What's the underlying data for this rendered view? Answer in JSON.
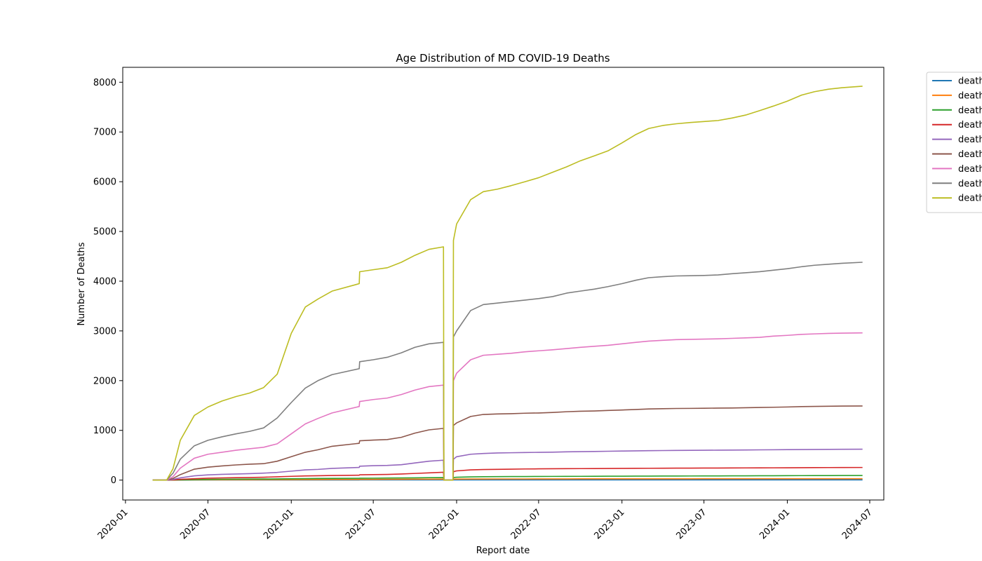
{
  "chart_data": {
    "type": "line",
    "title": "Age Distribution of MD COVID-19 Deaths",
    "xlabel": "Report date",
    "ylabel": "Number of Deaths",
    "x_ticks": [
      "2020-01",
      "2020-07",
      "2021-01",
      "2021-07",
      "2022-01",
      "2022-07",
      "2023-01",
      "2023-07",
      "2024-01",
      "2024-07"
    ],
    "y_ticks": [
      "0",
      "1000",
      "2000",
      "3000",
      "4000",
      "5000",
      "6000",
      "7000",
      "8000"
    ],
    "xlim": [
      "2019-12-26",
      "2024-08-01"
    ],
    "ylim": [
      -400,
      8300
    ],
    "grid": false,
    "legend_position": "outside upper right (clipped)",
    "x": [
      "2020-03-01",
      "2020-04-01",
      "2020-04-15",
      "2020-05-01",
      "2020-06-01",
      "2020-07-01",
      "2020-08-01",
      "2020-09-01",
      "2020-10-01",
      "2020-11-01",
      "2020-12-01",
      "2021-01-01",
      "2021-02-01",
      "2021-03-01",
      "2021-04-01",
      "2021-05-31",
      "2021-06-01",
      "2021-07-01",
      "2021-08-01",
      "2021-09-01",
      "2021-10-01",
      "2021-11-01",
      "2021-12-03",
      "2021-12-04",
      "2021-12-24",
      "2021-12-25",
      "2022-01-01",
      "2022-02-01",
      "2022-03-01",
      "2022-04-01",
      "2022-05-01",
      "2022-06-01",
      "2022-07-01",
      "2022-08-01",
      "2022-09-01",
      "2022-10-01",
      "2022-11-01",
      "2022-12-01",
      "2023-01-01",
      "2023-02-01",
      "2023-03-01",
      "2023-04-01",
      "2023-05-01",
      "2023-06-01",
      "2023-07-01",
      "2023-08-01",
      "2023-09-01",
      "2023-10-01",
      "2023-11-01",
      "2023-12-01",
      "2024-01-01",
      "2024-02-01",
      "2024-03-01",
      "2024-04-01",
      "2024-05-01",
      "2024-06-15"
    ],
    "series": [
      {
        "name": "death",
        "color": "#1f77b4",
        "values": [
          0,
          0,
          1,
          1,
          2,
          2,
          2,
          2,
          2,
          3,
          3,
          3,
          3,
          3,
          3,
          3,
          4,
          4,
          4,
          4,
          4,
          4,
          4,
          0,
          0,
          4,
          4,
          4,
          4,
          4,
          4,
          4,
          4,
          4,
          4,
          4,
          4,
          4,
          4,
          5,
          5,
          5,
          5,
          5,
          5,
          5,
          5,
          5,
          5,
          5,
          5,
          5,
          5,
          5,
          5,
          5
        ]
      },
      {
        "name": "death",
        "color": "#ff7f0e",
        "values": [
          0,
          0,
          1,
          2,
          4,
          6,
          7,
          8,
          8,
          9,
          9,
          10,
          11,
          12,
          13,
          14,
          15,
          15,
          16,
          17,
          18,
          19,
          20,
          0,
          0,
          20,
          21,
          22,
          22,
          23,
          23,
          23,
          24,
          24,
          24,
          25,
          25,
          25,
          25,
          26,
          26,
          26,
          26,
          26,
          27,
          27,
          27,
          27,
          27,
          28,
          28,
          28,
          28,
          28,
          28,
          28
        ]
      },
      {
        "name": "death",
        "color": "#2ca02c",
        "values": [
          0,
          0,
          2,
          5,
          10,
          14,
          17,
          19,
          20,
          22,
          24,
          27,
          30,
          32,
          34,
          36,
          38,
          39,
          41,
          43,
          45,
          48,
          50,
          0,
          0,
          52,
          58,
          65,
          68,
          70,
          71,
          72,
          73,
          74,
          75,
          76,
          77,
          78,
          79,
          80,
          81,
          82,
          82,
          83,
          84,
          84,
          85,
          86,
          87,
          88,
          89,
          90,
          91,
          91,
          92,
          92
        ]
      },
      {
        "name": "death",
        "color": "#d62728",
        "values": [
          0,
          0,
          5,
          15,
          28,
          38,
          44,
          48,
          52,
          58,
          66,
          76,
          84,
          88,
          92,
          98,
          106,
          110,
          114,
          122,
          134,
          146,
          158,
          0,
          0,
          170,
          185,
          205,
          212,
          216,
          220,
          224,
          226,
          228,
          230,
          231,
          232,
          233,
          235,
          237,
          238,
          239,
          240,
          241,
          242,
          243,
          244,
          245,
          246,
          247,
          248,
          250,
          251,
          252,
          253,
          254
        ]
      },
      {
        "name": "death",
        "color": "#9467bd",
        "values": [
          0,
          0,
          15,
          45,
          85,
          105,
          115,
          122,
          130,
          140,
          155,
          180,
          205,
          215,
          235,
          255,
          280,
          290,
          295,
          310,
          345,
          380,
          400,
          0,
          0,
          420,
          470,
          520,
          535,
          545,
          550,
          555,
          558,
          562,
          568,
          572,
          576,
          580,
          584,
          588,
          592,
          594,
          596,
          598,
          600,
          602,
          604,
          606,
          608,
          610,
          612,
          614,
          616,
          618,
          620,
          622
        ]
      },
      {
        "name": "death",
        "color": "#8c564b",
        "values": [
          0,
          0,
          35,
          110,
          220,
          260,
          285,
          305,
          320,
          330,
          380,
          470,
          560,
          610,
          680,
          740,
          790,
          805,
          815,
          860,
          945,
          1010,
          1040,
          0,
          0,
          1100,
          1150,
          1280,
          1320,
          1330,
          1335,
          1345,
          1350,
          1360,
          1375,
          1385,
          1390,
          1400,
          1410,
          1420,
          1430,
          1435,
          1440,
          1442,
          1445,
          1448,
          1450,
          1455,
          1460,
          1465,
          1470,
          1478,
          1482,
          1485,
          1488,
          1490
        ]
      },
      {
        "name": "death",
        "color": "#e377c2",
        "values": [
          0,
          0,
          70,
          240,
          440,
          520,
          560,
          600,
          630,
          660,
          730,
          930,
          1130,
          1240,
          1350,
          1480,
          1580,
          1620,
          1650,
          1720,
          1810,
          1880,
          1910,
          0,
          0,
          2000,
          2150,
          2420,
          2510,
          2530,
          2550,
          2580,
          2600,
          2620,
          2645,
          2670,
          2690,
          2710,
          2740,
          2770,
          2795,
          2810,
          2825,
          2830,
          2835,
          2840,
          2850,
          2860,
          2870,
          2895,
          2910,
          2930,
          2940,
          2950,
          2955,
          2960
        ]
      },
      {
        "name": "death",
        "color": "#7f7f7f",
        "values": [
          0,
          0,
          140,
          420,
          690,
          800,
          870,
          930,
          980,
          1050,
          1250,
          1560,
          1850,
          2000,
          2120,
          2240,
          2380,
          2420,
          2470,
          2560,
          2670,
          2740,
          2770,
          0,
          0,
          2880,
          3000,
          3410,
          3530,
          3560,
          3590,
          3620,
          3650,
          3690,
          3760,
          3800,
          3840,
          3890,
          3950,
          4020,
          4070,
          4090,
          4105,
          4110,
          4115,
          4125,
          4150,
          4170,
          4190,
          4220,
          4250,
          4290,
          4320,
          4340,
          4360,
          4380
        ]
      },
      {
        "name": "death",
        "color": "#bcbd22",
        "values": [
          0,
          0,
          230,
          800,
          1300,
          1470,
          1590,
          1680,
          1750,
          1860,
          2130,
          2950,
          3480,
          3640,
          3800,
          3950,
          4190,
          4230,
          4270,
          4380,
          4520,
          4640,
          4690,
          0,
          0,
          4820,
          5150,
          5640,
          5800,
          5850,
          5920,
          6000,
          6080,
          6190,
          6300,
          6420,
          6520,
          6620,
          6780,
          6950,
          7070,
          7130,
          7165,
          7190,
          7210,
          7230,
          7280,
          7340,
          7430,
          7520,
          7620,
          7740,
          7810,
          7860,
          7890,
          7920
        ]
      }
    ]
  }
}
